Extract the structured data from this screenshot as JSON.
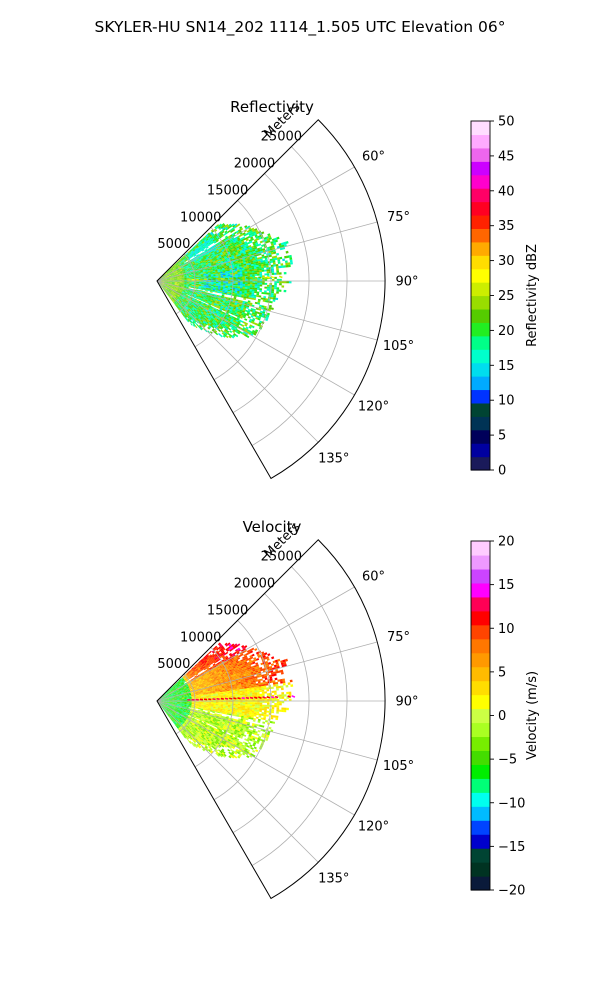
{
  "figure": {
    "suptitle": "SKYLER-HU  SN14_202  1114_1.505 UTC Elevation 06°"
  },
  "chart_data": [
    {
      "type": "heatmap",
      "title": "Reflectivity",
      "projection": "polar-sector",
      "angle_range_deg": [
        45,
        150
      ],
      "angle_ticks": [
        "60°",
        "75°",
        "90°",
        "105°",
        "120°",
        "135°"
      ],
      "angle_tick_values": [
        60,
        75,
        90,
        105,
        120,
        135
      ],
      "radius_label": "Meters",
      "radius_ticks": [
        "5000",
        "10000",
        "15000",
        "20000",
        "25000"
      ],
      "radius_tick_values": [
        5000,
        10000,
        15000,
        20000,
        25000
      ],
      "radius_max": 30000,
      "grid": true,
      "colorbar": {
        "label": "Reflectivity dBZ",
        "range": [
          0,
          50
        ],
        "ticks": [
          "0",
          "5",
          "10",
          "15",
          "20",
          "25",
          "30",
          "35",
          "40",
          "45",
          "50"
        ],
        "colormap": "pyart_NWSRef"
      },
      "approx_data": {
        "max_range_m": 18000,
        "typical_values_dbz": [
          12,
          28
        ],
        "dominant_value_dbz": 20
      }
    },
    {
      "type": "heatmap",
      "title": "Velocity",
      "projection": "polar-sector",
      "angle_range_deg": [
        45,
        150
      ],
      "angle_ticks": [
        "60°",
        "75°",
        "90°",
        "105°",
        "120°",
        "135°"
      ],
      "angle_tick_values": [
        60,
        75,
        90,
        105,
        120,
        135
      ],
      "radius_label": "Meters",
      "radius_ticks": [
        "5000",
        "10000",
        "15000",
        "20000",
        "25000"
      ],
      "radius_tick_values": [
        5000,
        10000,
        15000,
        20000,
        25000
      ],
      "radius_max": 30000,
      "grid": true,
      "colorbar": {
        "label": "Velocity (m/s)",
        "range": [
          -20,
          20
        ],
        "ticks": [
          "−20",
          "−15",
          "−10",
          "−5",
          "0",
          "5",
          "10",
          "15",
          "20"
        ],
        "colormap": "pyart_NWSVel"
      },
      "approx_data": {
        "max_range_m": 18000,
        "near_range_m_per_s": -6,
        "mid_range_m_per_s": 2,
        "far_north_m_per_s": 10
      }
    }
  ],
  "colors": {
    "ref_stops": [
      "#1a1a5a",
      "#0000a0",
      "#00005a",
      "#003355",
      "#004433",
      "#0033ff",
      "#00aaff",
      "#00ddee",
      "#00ffcc",
      "#00ff88",
      "#22ee22",
      "#55cc00",
      "#99dd00",
      "#ccee00",
      "#ffff00",
      "#ffdd00",
      "#ffaa00",
      "#ff6600",
      "#ff2200",
      "#ff0022",
      "#ff0066",
      "#ff00cc",
      "#cc00ff",
      "#ee66ee",
      "#ffaaff",
      "#ffddff"
    ],
    "vel_stops": [
      "#0a1a3a",
      "#003322",
      "#004433",
      "#0000cc",
      "#0044ff",
      "#00bbff",
      "#00ffee",
      "#00ff77",
      "#00ee00",
      "#44dd00",
      "#77ee00",
      "#aaff22",
      "#ccff44",
      "#ffff00",
      "#ffdd00",
      "#ffbb00",
      "#ff9900",
      "#ff7700",
      "#ff4400",
      "#ff0000",
      "#ff0055",
      "#ff00ff",
      "#cc44ff",
      "#ee99ff",
      "#ffccff"
    ]
  }
}
